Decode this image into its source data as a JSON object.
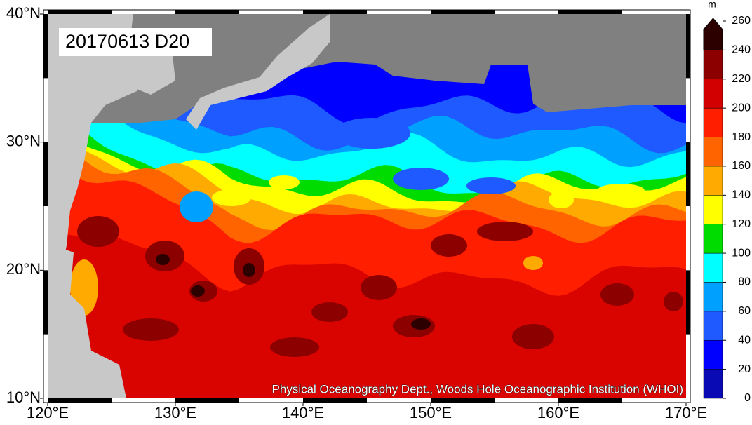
{
  "map": {
    "label": "20170613 D20",
    "credit": "Physical Oceanography Dept., Woods Hole Oceanographic Institution (WHOI)",
    "xlim": [
      120,
      170
    ],
    "ylim": [
      10,
      40
    ],
    "xticks": [
      {
        "value": 120,
        "label": "120°E"
      },
      {
        "value": 130,
        "label": "130°E"
      },
      {
        "value": 140,
        "label": "140°E"
      },
      {
        "value": 150,
        "label": "150°E"
      },
      {
        "value": 160,
        "label": "160°E"
      },
      {
        "value": 170,
        "label": "170°E"
      }
    ],
    "yticks": [
      {
        "value": 10,
        "label": "10°N"
      },
      {
        "value": 20,
        "label": "20°N"
      },
      {
        "value": 30,
        "label": "30°N"
      },
      {
        "value": 40,
        "label": "40°N"
      }
    ]
  },
  "colorbar": {
    "unit": "m",
    "levels": [
      0,
      20,
      40,
      60,
      80,
      100,
      120,
      140,
      160,
      180,
      200,
      220,
      240,
      260
    ],
    "colors": [
      "#0a0ab4",
      "#0000ff",
      "#1e5aff",
      "#00a0ff",
      "#00ffff",
      "#00dc00",
      "#ffff00",
      "#ffaa00",
      "#ff6400",
      "#ff1e00",
      "#d20000",
      "#8c0000",
      "#2d0000"
    ]
  }
}
